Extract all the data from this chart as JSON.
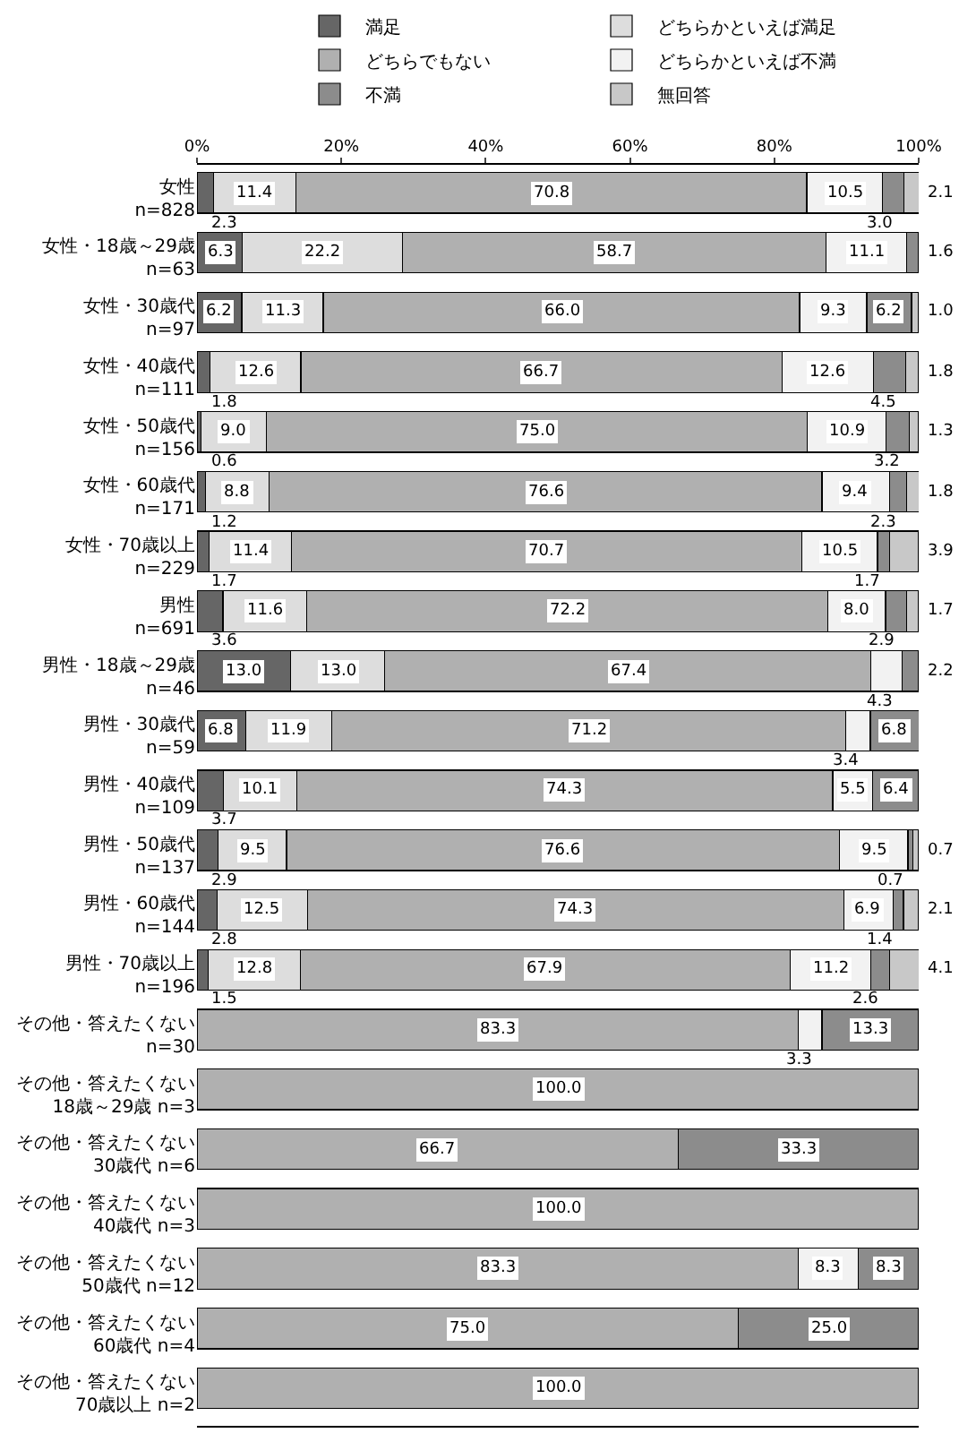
{
  "chart_data": {
    "type": "bar",
    "orientation": "horizontal",
    "stacked": true,
    "legend": "top",
    "categories": [
      "女性\nn=828",
      "女性・18歳～29歳\nn=63",
      "女性・30歳代\nn=97",
      "女性・40歳代\nn=111",
      "女性・50歳代\nn=156",
      "女性・60歳代\nn=171",
      "女性・70歳以上\nn=229",
      "男性\nn=691",
      "男性・18歳～29歳\nn=46",
      "男性・30歳代\nn=59",
      "男性・40歳代\nn=109",
      "男性・50歳代\nn=137",
      "男性・60歳代\nn=144",
      "男性・70歳以上\nn=196",
      "その他・答えたくない\nn=30",
      "その他・答えたくない\n18歳～29歳\nn=3",
      "その他・答えたくない\n30歳代\nn=6",
      "その他・答えたくない\n40歳代\nn=3",
      "その他・答えたくない\n50歳代\nn=12",
      "その他・答えたくない\n60歳代\nn=4",
      "その他・答えたくない\n70歳以上\nn=2"
    ],
    "xlim": [
      0,
      100
    ],
    "xticks": [
      {
        "value": 0,
        "label": "0%"
      },
      {
        "value": 20,
        "label": "20%"
      },
      {
        "value": 40,
        "label": "40%"
      },
      {
        "value": 60,
        "label": "60%"
      },
      {
        "value": 80,
        "label": "80%"
      },
      {
        "value": 100,
        "label": "100%"
      }
    ],
    "series": [
      {
        "name": "満足",
        "color": "#666666",
        "values": [
          2.3,
          6.3,
          6.2,
          1.8,
          0.6,
          1.2,
          1.7,
          3.6,
          13.0,
          6.8,
          3.7,
          2.9,
          2.8,
          1.5,
          null,
          null,
          null,
          null,
          null,
          null,
          null
        ],
        "value_labels": [
          "2.3",
          "6.3",
          "6.2",
          "1.8",
          "0.6",
          "1.2",
          "1.7",
          "3.6",
          "13.0",
          "6.8",
          "3.7",
          "2.9",
          "2.8",
          "1.5",
          null,
          null,
          null,
          null,
          null,
          null,
          null
        ]
      },
      {
        "name": "どちらかといえば満足",
        "color": "#dddddd",
        "values": [
          11.4,
          22.2,
          11.3,
          12.6,
          9.0,
          8.8,
          11.4,
          11.6,
          13.0,
          11.9,
          10.1,
          9.5,
          12.5,
          12.8,
          null,
          null,
          null,
          null,
          null,
          null,
          null
        ],
        "value_labels": [
          "11.4",
          "22.2",
          "11.3",
          "12.6",
          "9.0",
          "8.8",
          "11.4",
          "11.6",
          "13.0",
          "11.9",
          "10.1",
          "9.5",
          "12.5",
          "12.8",
          null,
          null,
          null,
          null,
          null,
          null,
          null
        ]
      },
      {
        "name": "どちらでもない",
        "color": "#b0b0b0",
        "values": [
          70.8,
          58.7,
          66.0,
          66.7,
          75.0,
          76.6,
          70.7,
          72.2,
          67.4,
          71.2,
          74.3,
          76.6,
          74.3,
          67.9,
          83.3,
          100.0,
          66.7,
          100.0,
          83.3,
          75.0,
          100.0
        ],
        "value_labels": [
          "70.8",
          "58.7",
          "66.0",
          "66.7",
          "75.0",
          "76.6",
          "70.7",
          "72.2",
          "67.4",
          "71.2",
          "74.3",
          "76.6",
          "74.3",
          "67.9",
          "83.3",
          "100.0",
          "66.7",
          "100.0",
          "83.3",
          "75.0",
          "100.0"
        ]
      },
      {
        "name": "どちらかといえば不満",
        "color": "#f2f2f2",
        "values": [
          10.5,
          11.1,
          9.3,
          12.6,
          10.9,
          9.4,
          10.5,
          8.0,
          4.3,
          3.4,
          5.5,
          9.5,
          6.9,
          11.2,
          3.3,
          null,
          null,
          null,
          8.3,
          null,
          null
        ],
        "value_labels": [
          "10.5",
          "11.1",
          "9.3",
          "12.6",
          "10.9",
          "9.4",
          "10.5",
          "8.0",
          "4.3",
          "3.4",
          "5.5",
          "9.5",
          "6.9",
          "11.2",
          "3.3",
          null,
          null,
          null,
          "8.3",
          null,
          null
        ]
      },
      {
        "name": "不満",
        "color": "#8c8c8c",
        "values": [
          3.0,
          1.6,
          6.2,
          4.5,
          3.2,
          2.3,
          1.7,
          2.9,
          2.2,
          6.8,
          6.4,
          0.7,
          1.4,
          2.6,
          13.3,
          null,
          33.3,
          null,
          8.3,
          25.0,
          null
        ],
        "value_labels": [
          "3.0",
          "1.6",
          "6.2",
          "4.5",
          "3.2",
          "2.3",
          "1.7",
          "2.9",
          "2.2",
          "6.8",
          "6.4",
          "0.7",
          "1.4",
          "2.6",
          "13.3",
          null,
          "33.3",
          null,
          "8.3",
          "25.0",
          null
        ]
      },
      {
        "name": "無回答",
        "color": "#c8c8c8",
        "values": [
          2.1,
          null,
          1.0,
          1.8,
          1.3,
          1.8,
          3.9,
          1.7,
          null,
          null,
          null,
          0.7,
          2.1,
          4.1,
          null,
          null,
          null,
          null,
          null,
          null,
          null
        ],
        "value_labels": [
          "2.1",
          null,
          "1.0",
          "1.8",
          "1.3",
          "1.8",
          "3.9",
          "1.7",
          null,
          null,
          null,
          "0.7",
          "2.1",
          "4.1",
          null,
          null,
          null,
          null,
          null,
          null,
          null
        ]
      }
    ]
  }
}
